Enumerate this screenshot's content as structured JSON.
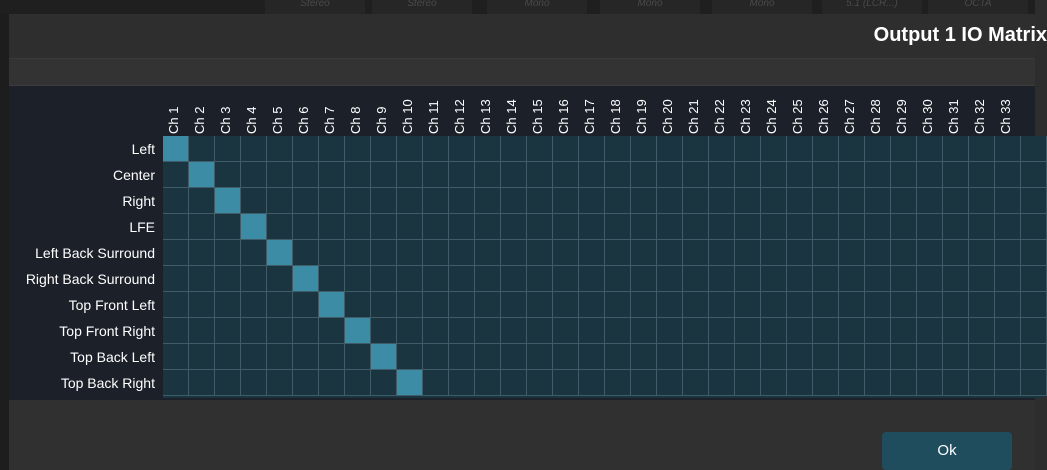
{
  "background_tabs": [
    "Stereo",
    "Stereo",
    "Mono",
    "Mono",
    "Mono",
    "5.1 (LCR...)",
    "OCTA"
  ],
  "dialog": {
    "title": "Output 1 IO Matrix",
    "ok_label": "Ok"
  },
  "matrix": {
    "rows": [
      "Left",
      "Center",
      "Right",
      "LFE",
      "Left Back Surround",
      "Right Back Surround",
      "Top Front Left",
      "Top Front Right",
      "Top Back Left",
      "Top Back Right"
    ],
    "columns": [
      "Ch 1",
      "Ch 2",
      "Ch 3",
      "Ch 4",
      "Ch 5",
      "Ch 6",
      "Ch 7",
      "Ch 8",
      "Ch 9",
      "Ch 10",
      "Ch 11",
      "Ch 12",
      "Ch 13",
      "Ch 14",
      "Ch 15",
      "Ch 16",
      "Ch 17",
      "Ch 18",
      "Ch 19",
      "Ch 20",
      "Ch 21",
      "Ch 22",
      "Ch 23",
      "Ch 24",
      "Ch 25",
      "Ch 26",
      "Ch 27",
      "Ch 28",
      "Ch 29",
      "Ch 30",
      "Ch 31",
      "Ch 32",
      "Ch 33"
    ],
    "active": [
      [
        0,
        0
      ],
      [
        1,
        1
      ],
      [
        2,
        2
      ],
      [
        3,
        3
      ],
      [
        4,
        4
      ],
      [
        5,
        5
      ],
      [
        6,
        6
      ],
      [
        7,
        7
      ],
      [
        8,
        8
      ],
      [
        9,
        9
      ]
    ]
  },
  "colors": {
    "active_cell": "#3d8ca5",
    "inactive_cell": "#1a3540",
    "button": "#1f4d5e"
  }
}
